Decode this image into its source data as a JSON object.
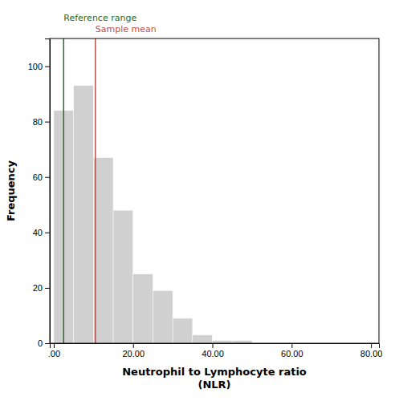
{
  "chart_data": {
    "type": "histogram",
    "bins": [
      0,
      5,
      10,
      15,
      20,
      25,
      30,
      35,
      40,
      45,
      50,
      55
    ],
    "values": [
      84,
      93,
      67,
      48,
      25,
      19,
      9,
      3,
      1,
      1,
      0
    ],
    "color": "#d0d0d0",
    "x_label": "Neutrophil to Lymphocyte ratio\n(NLR)",
    "y_label": "Frequency",
    "xlim": [
      -1,
      82
    ],
    "ylim": [
      0,
      110
    ],
    "xticks": [
      {
        "value": 0,
        "label": ".00"
      },
      {
        "value": 20,
        "label": "20.00"
      },
      {
        "value": 40,
        "label": "40.00"
      },
      {
        "value": 60,
        "label": "60.00"
      },
      {
        "value": 80,
        "label": "80.00"
      }
    ],
    "yticks": [
      0,
      20,
      40,
      60,
      80,
      100
    ],
    "annotations": [
      {
        "text": "Reference range",
        "x": 2.5,
        "color": "#2d6a2d"
      },
      {
        "text": "Sample mean",
        "x": 10.5,
        "color": "#b85050"
      }
    ],
    "grid": false
  }
}
